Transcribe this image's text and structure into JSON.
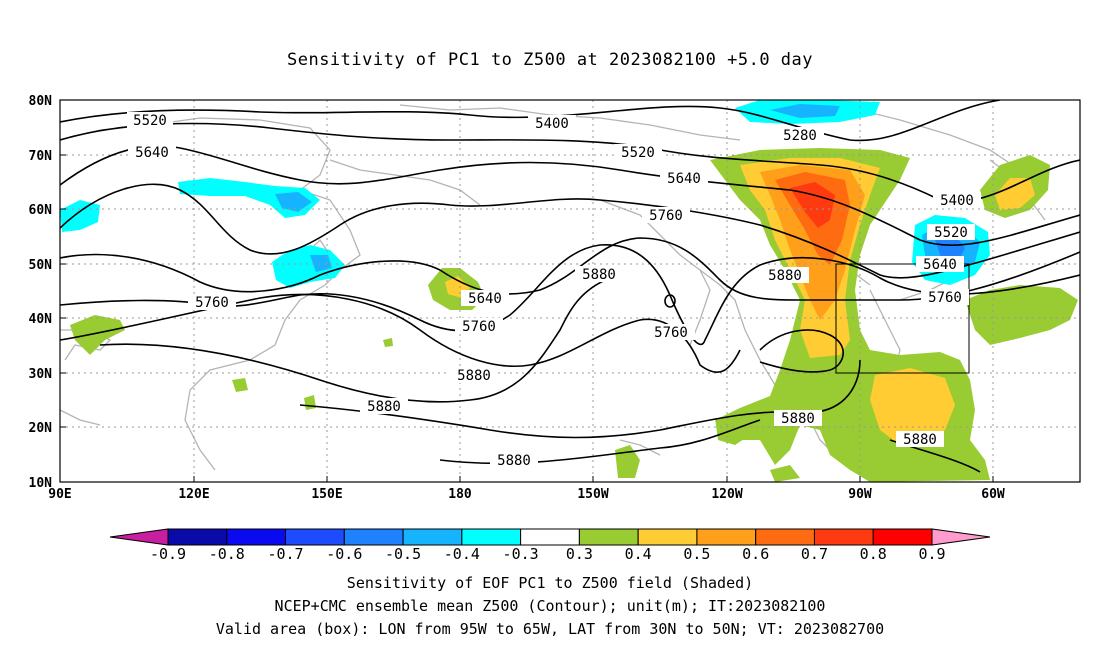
{
  "title": "Sensitivity of PC1 to Z500 at 2023082100 +5.0 day",
  "lat_labels": [
    "80N",
    "70N",
    "60N",
    "50N",
    "40N",
    "30N",
    "20N",
    "10N"
  ],
  "lon_labels": [
    "90E",
    "120E",
    "150E",
    "180",
    "150W",
    "120W",
    "90W",
    "60W"
  ],
  "contour_labels": [
    {
      "text": "5520",
      "key": "a"
    },
    {
      "text": "5640",
      "key": "b"
    },
    {
      "text": "5760",
      "key": "c"
    },
    {
      "text": "5400",
      "key": "d"
    },
    {
      "text": "5520",
      "key": "e"
    },
    {
      "text": "5640",
      "key": "f"
    },
    {
      "text": "5760",
      "key": "g"
    },
    {
      "text": "5880",
      "key": "h"
    },
    {
      "text": "5280",
      "key": "i"
    },
    {
      "text": "5640",
      "key": "j"
    },
    {
      "text": "5760",
      "key": "k"
    },
    {
      "text": "5880",
      "key": "l"
    },
    {
      "text": "5880",
      "key": "m"
    },
    {
      "text": "5880",
      "key": "n"
    },
    {
      "text": "5760",
      "key": "o"
    },
    {
      "text": "5880",
      "key": "p"
    },
    {
      "text": "5400",
      "key": "q"
    },
    {
      "text": "5520",
      "key": "r"
    },
    {
      "text": "5640",
      "key": "s"
    },
    {
      "text": "5760",
      "key": "t"
    },
    {
      "text": "5880",
      "key": "u"
    },
    {
      "text": "5880",
      "key": "v"
    }
  ],
  "valid_area": {
    "lon_min": "95W",
    "lon_max": "65W",
    "lat_min": "30N",
    "lat_max": "50N"
  },
  "colorbar": {
    "labels": [
      "-0.9",
      "-0.8",
      "-0.7",
      "-0.6",
      "-0.5",
      "-0.4",
      "-0.3",
      "0.3",
      "0.4",
      "0.5",
      "0.6",
      "0.7",
      "0.8",
      "0.9"
    ],
    "colors": [
      "#0a0aa8",
      "#0a0af0",
      "#1d4cff",
      "#1e82ff",
      "#16b4ff",
      "#00ffff",
      "#ffffff",
      "#99cc33",
      "#ffcc33",
      "#ff9f1a",
      "#ff6b10",
      "#ff3a10",
      "#ff0000"
    ],
    "low_end_color": "#c81ea0",
    "high_end_color": "#ff9ccd"
  },
  "caption": {
    "line1": "Sensitivity of EOF PC1 to Z500 field (Shaded)",
    "line2": "NCEP+CMC ensemble mean Z500 (Contour); unit(m); IT:2023082100",
    "line3": "Valid area (box): LON from 95W to 65W, LAT from 30N to 50N; VT: 2023082700"
  }
}
